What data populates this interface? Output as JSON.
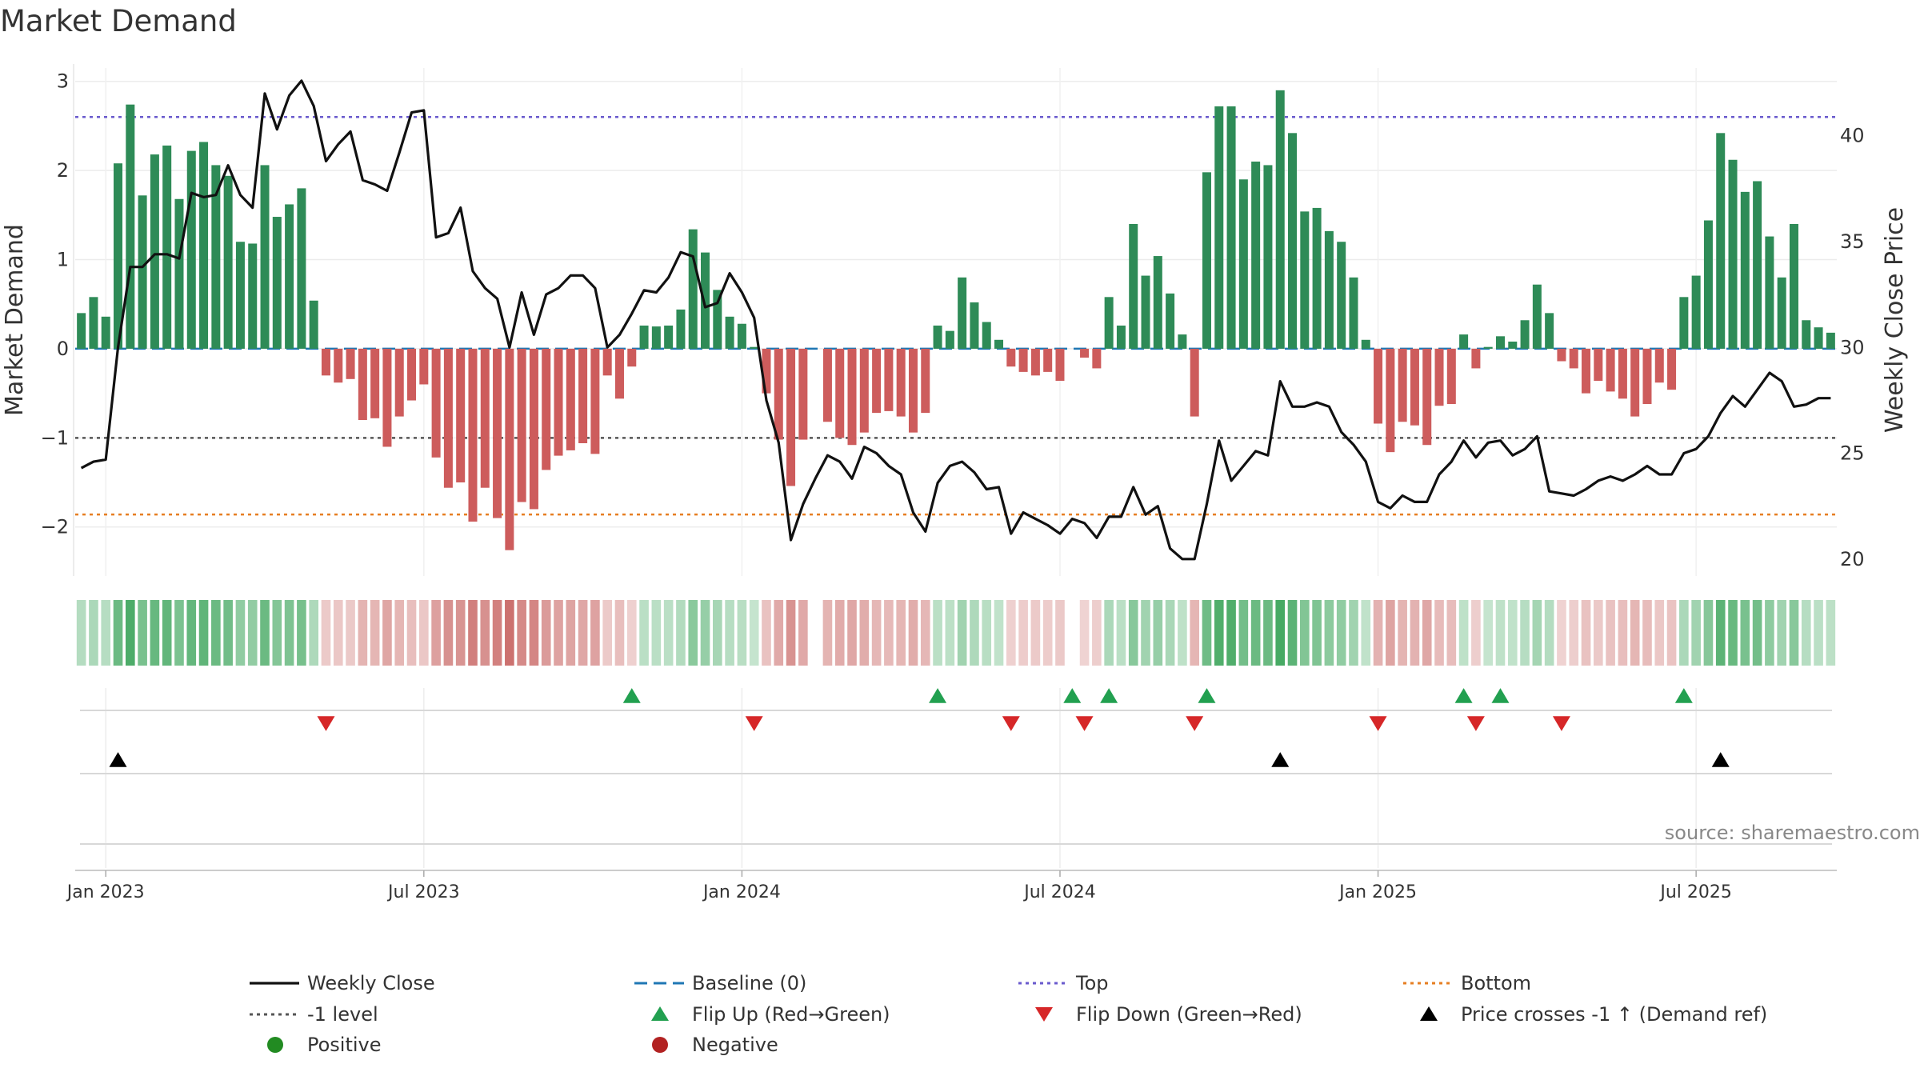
{
  "chart_data": {
    "type": "bar+line",
    "title": "Market Demand",
    "ylabel": "Market Demand",
    "y2label": "Weekly Close Price",
    "ylim": [
      -2.55,
      3.15
    ],
    "y2lim": [
      19.2,
      43.2
    ],
    "yticks": [
      "3",
      "2",
      "1",
      "0",
      "−1",
      "−2"
    ],
    "ytick_values": [
      3,
      2,
      1,
      0,
      -1,
      -2
    ],
    "y2ticks": [
      "40",
      "35",
      "30",
      "25",
      "20"
    ],
    "y2tick_values": [
      40,
      35,
      30,
      25,
      20
    ],
    "xticks": [
      "Jan 2023",
      "Jul 2023",
      "Jan 2024",
      "Jul 2024",
      "Jan 2025",
      "Jul 2025"
    ],
    "xtick_weeks": [
      2,
      28,
      54,
      80,
      106,
      132
    ],
    "week_count": 144,
    "levels": {
      "top": 2.6,
      "minus_one": -1.0,
      "bottom": -1.86
    },
    "demand": [
      0.4,
      0.58,
      0.36,
      2.08,
      2.74,
      1.72,
      2.18,
      2.28,
      1.68,
      2.22,
      2.32,
      2.06,
      1.94,
      1.2,
      1.18,
      2.06,
      1.48,
      1.62,
      1.8,
      0.54,
      -0.3,
      -0.38,
      -0.34,
      -0.8,
      -0.78,
      -1.1,
      -0.76,
      -0.58,
      -0.4,
      -1.22,
      -1.56,
      -1.5,
      -1.94,
      -1.56,
      -1.9,
      -2.26,
      -1.72,
      -1.8,
      -1.36,
      -1.2,
      -1.14,
      -1.06,
      -1.18,
      -0.3,
      -0.56,
      -0.2,
      0.26,
      0.25,
      0.26,
      0.44,
      1.34,
      1.08,
      0.66,
      0.36,
      0.28,
      0.02,
      -0.5,
      -1.02,
      -1.54,
      -1.02,
      0.0,
      -0.82,
      -1.0,
      -1.08,
      -0.94,
      -0.72,
      -0.7,
      -0.76,
      -0.94,
      -0.72,
      0.26,
      0.2,
      0.8,
      0.52,
      0.3,
      0.1,
      -0.2,
      -0.26,
      -0.3,
      -0.26,
      -0.36,
      0.0,
      -0.1,
      -0.22,
      0.58,
      0.26,
      1.4,
      0.82,
      1.04,
      0.62,
      0.16,
      -0.76,
      1.98,
      2.72,
      2.72,
      1.9,
      2.1,
      2.06,
      2.9,
      2.42,
      1.54,
      1.58,
      1.32,
      1.2,
      0.8,
      0.1,
      -0.84,
      -1.16,
      -0.82,
      -0.86,
      -1.08,
      -0.64,
      -0.62,
      0.16,
      -0.22,
      0.02,
      0.14,
      0.08,
      0.32,
      0.72,
      0.4,
      -0.14,
      -0.22,
      -0.5,
      -0.36,
      -0.48,
      -0.56,
      -0.76,
      -0.62,
      -0.38,
      -0.46,
      0.58,
      0.82,
      1.44,
      2.42,
      2.12,
      1.76,
      1.88,
      1.26,
      0.8,
      1.4,
      0.32,
      0.24,
      0.18
    ],
    "price": [
      24.3,
      24.6,
      24.7,
      30.0,
      33.8,
      33.8,
      34.4,
      34.4,
      34.2,
      37.3,
      37.1,
      37.2,
      38.6,
      37.2,
      36.6,
      42.0,
      40.3,
      41.9,
      42.6,
      41.4,
      38.8,
      39.6,
      40.2,
      37.9,
      37.7,
      37.4,
      39.2,
      41.1,
      41.2,
      35.2,
      35.4,
      36.6,
      33.6,
      32.8,
      32.3,
      30.0,
      32.6,
      30.6,
      32.5,
      32.8,
      33.4,
      33.4,
      32.8,
      30.0,
      30.6,
      31.6,
      32.7,
      32.6,
      33.3,
      34.5,
      34.3,
      31.9,
      32.1,
      33.5,
      32.6,
      31.4,
      27.5,
      25.5,
      20.9,
      22.6,
      23.8,
      24.9,
      24.6,
      23.8,
      25.3,
      25.0,
      24.4,
      24.0,
      22.2,
      21.3,
      23.6,
      24.4,
      24.6,
      24.1,
      23.3,
      23.4,
      21.2,
      22.2,
      21.9,
      21.6,
      21.2,
      21.9,
      21.7,
      21.0,
      22.0,
      22.0,
      23.4,
      22.1,
      22.5,
      20.5,
      20.0,
      20.0,
      22.6,
      25.6,
      23.7,
      24.4,
      25.1,
      24.9,
      28.4,
      27.2,
      27.2,
      27.4,
      27.2,
      26.0,
      25.4,
      24.6,
      22.7,
      22.4,
      23.0,
      22.7,
      22.7,
      24.0,
      24.6,
      25.6,
      24.8,
      25.5,
      25.6,
      24.9,
      25.2,
      25.8,
      23.2,
      23.1,
      23.0,
      23.3,
      23.7,
      23.9,
      23.7,
      24.0,
      24.4,
      24.0,
      24.0,
      25.0,
      25.2,
      25.8,
      26.9,
      27.7,
      27.2,
      28.0,
      28.8,
      28.4,
      27.2,
      27.3,
      27.6,
      27.6
    ],
    "flip_up_weeks": [
      45,
      70,
      81,
      84,
      92,
      113,
      116,
      131
    ],
    "flip_down_weeks": [
      20,
      55,
      76,
      82,
      91,
      106,
      114,
      121
    ],
    "price_cross_weeks": [
      3,
      98,
      134
    ],
    "bar_colors": {
      "positive": "#2e8b57",
      "negative": "#cd5c5c"
    },
    "line_color": "#111111"
  },
  "legend": {
    "items": [
      {
        "label": "Weekly Close",
        "symbol": "line",
        "color": "#111111"
      },
      {
        "label": "Baseline (0)",
        "symbol": "dash",
        "color": "#1f77b4"
      },
      {
        "label": "Top",
        "symbol": "dot",
        "color": "#6a5acd"
      },
      {
        "label": "Bottom",
        "symbol": "dot",
        "color": "#e67e22"
      },
      {
        "label": "-1 level",
        "symbol": "dot",
        "color": "#555555"
      },
      {
        "label": "Flip Up (Red→Green)",
        "symbol": "up",
        "color": "#22a050"
      },
      {
        "label": "Flip Down (Green→Red)",
        "symbol": "down",
        "color": "#d62728"
      },
      {
        "label": "Price crosses -1 ↑ (Demand ref)",
        "symbol": "up",
        "color": "#000000"
      },
      {
        "label": "Positive",
        "symbol": "circle",
        "color": "#228b22"
      },
      {
        "label": "Negative",
        "symbol": "circle",
        "color": "#b22222"
      }
    ]
  },
  "source_text": "source: sharemaestro.com"
}
